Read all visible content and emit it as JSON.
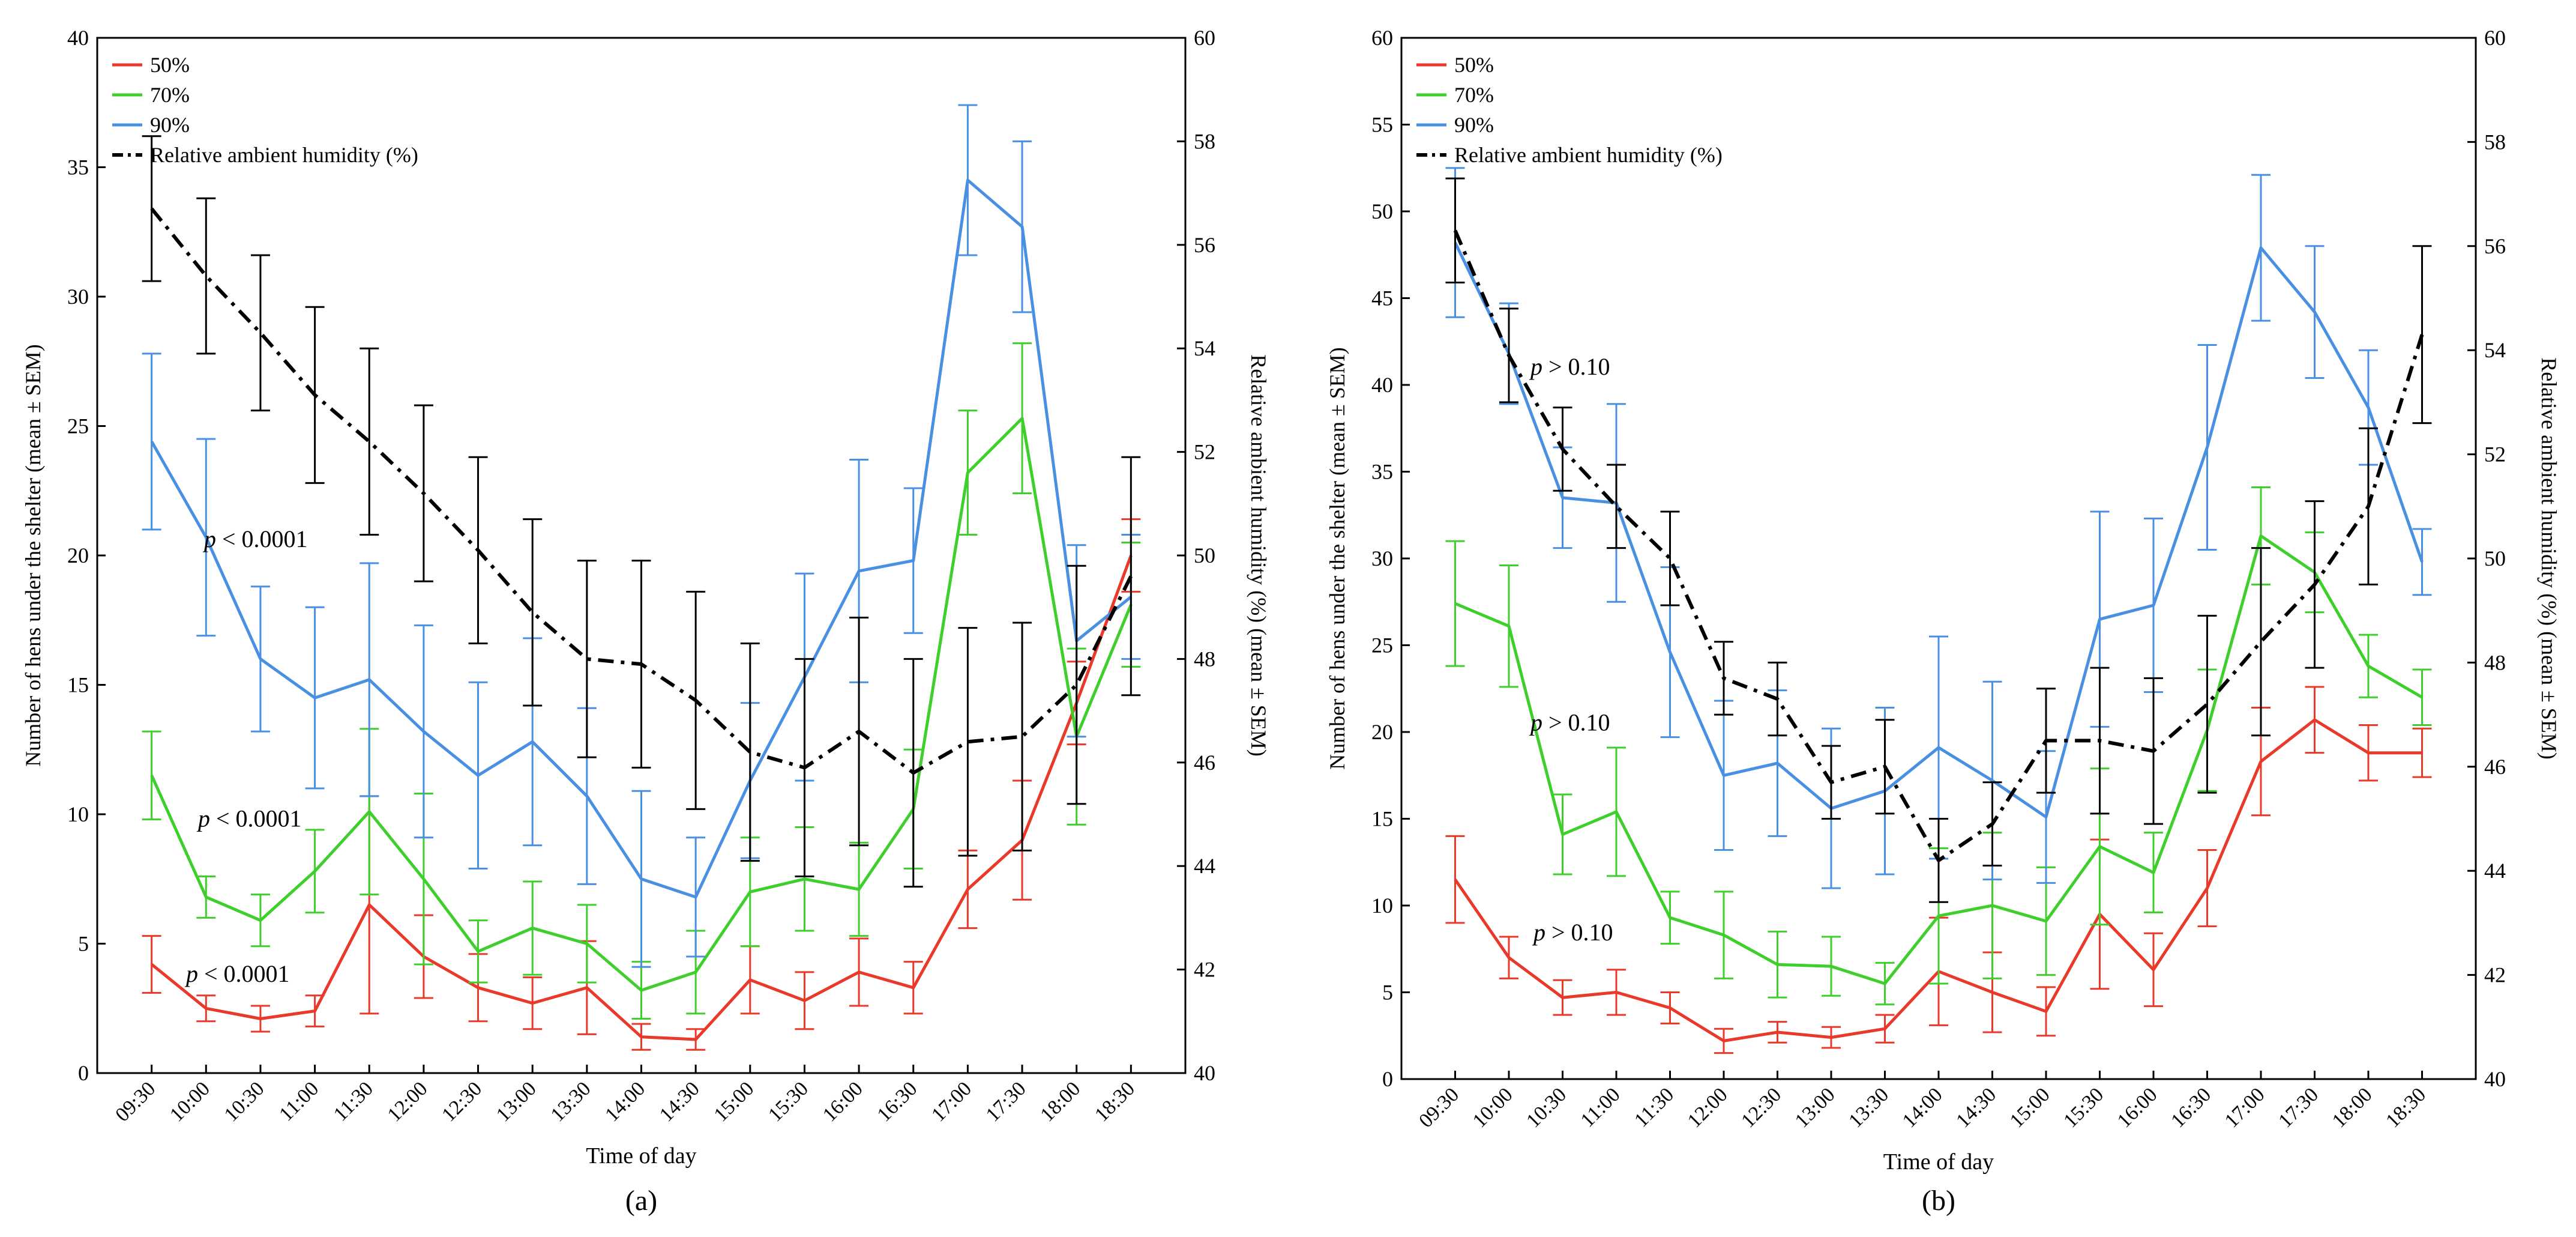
{
  "colors": {
    "red": "#e8392a",
    "green": "#3fcf2c",
    "blue": "#4a90e2",
    "black": "#000000"
  },
  "time_labels": [
    "09:30",
    "10:00",
    "10:30",
    "11:00",
    "11:30",
    "12:00",
    "12:30",
    "13:00",
    "13:30",
    "14:00",
    "14:30",
    "15:00",
    "15:30",
    "16:00",
    "16:30",
    "17:00",
    "17:30",
    "18:00",
    "18:30"
  ],
  "chart_data": [
    {
      "type": "line",
      "panel_label": "(a)",
      "xlabel": "Time of day",
      "ylabel_left": "Number of hens under the shelter (mean ± SEM)",
      "ylabel_right": "Relative ambient humidity (%) (mean ± SEM)",
      "ylim_left": [
        0,
        40
      ],
      "yticks_left": [
        0,
        5,
        10,
        15,
        20,
        25,
        30,
        35,
        40
      ],
      "ylim_right": [
        40,
        60
      ],
      "yticks_right": [
        40,
        42,
        44,
        46,
        48,
        50,
        52,
        54,
        56,
        58,
        60
      ],
      "legend_position": "top-left",
      "series": [
        {
          "name": "50%",
          "color_key": "red",
          "axis": "left",
          "values": [
            4.2,
            2.5,
            2.1,
            2.4,
            6.5,
            4.5,
            3.3,
            2.7,
            3.3,
            1.4,
            1.3,
            3.6,
            2.8,
            3.9,
            3.3,
            7.1,
            9.0,
            14.3,
            20.0
          ],
          "errors": [
            1.1,
            0.5,
            0.5,
            0.6,
            4.2,
            1.6,
            1.3,
            1.0,
            1.8,
            0.5,
            0.4,
            1.3,
            1.1,
            1.3,
            1.0,
            1.5,
            2.3,
            1.6,
            1.4
          ]
        },
        {
          "name": "70%",
          "color_key": "green",
          "axis": "left",
          "values": [
            11.5,
            6.8,
            5.9,
            7.8,
            10.1,
            7.5,
            4.7,
            5.6,
            5.0,
            3.2,
            3.9,
            7.0,
            7.5,
            7.1,
            10.2,
            23.2,
            25.3,
            13.0,
            18.1
          ],
          "errors": [
            1.7,
            0.8,
            1.0,
            1.6,
            3.2,
            3.3,
            1.2,
            1.8,
            1.5,
            1.1,
            1.6,
            2.1,
            2.0,
            1.8,
            2.3,
            2.4,
            2.9,
            3.4,
            2.4
          ]
        },
        {
          "name": "90%",
          "color_key": "blue",
          "axis": "left",
          "values": [
            24.4,
            20.7,
            16.0,
            14.5,
            15.2,
            13.2,
            11.5,
            12.8,
            10.7,
            7.5,
            6.8,
            11.3,
            15.3,
            19.4,
            19.8,
            34.5,
            32.7,
            16.7,
            18.4
          ],
          "errors": [
            3.4,
            3.8,
            2.8,
            3.5,
            4.5,
            4.1,
            3.6,
            4.0,
            3.4,
            3.4,
            2.3,
            3.0,
            4.0,
            4.3,
            2.8,
            2.9,
            3.3,
            3.7,
            2.4
          ]
        },
        {
          "name": "Relative ambient humidity (%)",
          "color_key": "black",
          "axis": "right",
          "dash": "dash-dot",
          "values": [
            56.7,
            55.4,
            54.3,
            53.1,
            52.2,
            51.2,
            50.1,
            48.9,
            48.0,
            47.9,
            47.2,
            46.2,
            45.9,
            46.6,
            45.8,
            46.4,
            46.5,
            47.5,
            49.6
          ],
          "errors": [
            1.4,
            1.5,
            1.5,
            1.7,
            1.8,
            1.7,
            1.8,
            1.8,
            1.9,
            2.0,
            2.1,
            2.1,
            2.1,
            2.2,
            2.2,
            2.2,
            2.2,
            2.3,
            2.3
          ]
        }
      ],
      "annotations": [
        {
          "text": "p < 0.0001",
          "near": "90%",
          "at_index": 2.2,
          "value": 20.6
        },
        {
          "text": "p < 0.0001",
          "near": "70%",
          "at_index": 2.0,
          "value": 9.8
        },
        {
          "text": "p < 0.0001",
          "near": "50%",
          "at_index": 1.8,
          "value": 3.8
        }
      ]
    },
    {
      "type": "line",
      "panel_label": "(b)",
      "xlabel": "Time of day",
      "ylabel_left": "Number of hens under the shelter (mean ± SEM)",
      "ylabel_right": "Relative ambient humidity (%) (mean ± SEM)",
      "ylim_left": [
        0,
        60
      ],
      "yticks_left": [
        0,
        5,
        10,
        15,
        20,
        25,
        30,
        35,
        40,
        45,
        50,
        55,
        60
      ],
      "ylim_right": [
        40,
        60
      ],
      "yticks_right": [
        40,
        42,
        44,
        46,
        48,
        50,
        52,
        54,
        56,
        58,
        60
      ],
      "legend_position": "top-left",
      "series": [
        {
          "name": "50%",
          "color_key": "red",
          "axis": "left",
          "values": [
            11.5,
            7.0,
            4.7,
            5.0,
            4.1,
            2.2,
            2.7,
            2.4,
            2.9,
            6.2,
            5.0,
            3.9,
            9.5,
            6.3,
            11.0,
            18.3,
            20.7,
            18.8,
            18.8
          ],
          "errors": [
            2.5,
            1.2,
            1.0,
            1.3,
            0.9,
            0.7,
            0.6,
            0.6,
            0.8,
            3.1,
            2.3,
            1.4,
            4.3,
            2.1,
            2.2,
            3.1,
            1.9,
            1.6,
            1.4
          ]
        },
        {
          "name": "70%",
          "color_key": "green",
          "axis": "left",
          "values": [
            27.4,
            26.1,
            14.1,
            15.4,
            9.3,
            8.3,
            6.6,
            6.5,
            5.5,
            9.4,
            10.0,
            9.1,
            13.4,
            11.9,
            20.1,
            31.3,
            29.2,
            23.8,
            22.0
          ],
          "errors": [
            3.6,
            3.5,
            2.3,
            3.7,
            1.5,
            2.5,
            1.9,
            1.7,
            1.2,
            3.9,
            4.2,
            3.1,
            4.5,
            2.3,
            3.5,
            2.8,
            2.3,
            1.8,
            1.6
          ]
        },
        {
          "name": "90%",
          "color_key": "blue",
          "axis": "left",
          "values": [
            48.2,
            41.8,
            33.5,
            33.2,
            24.6,
            17.5,
            18.2,
            15.6,
            16.6,
            19.1,
            17.2,
            15.1,
            26.5,
            27.3,
            36.4,
            47.9,
            44.2,
            38.7,
            29.8
          ],
          "errors": [
            4.3,
            2.9,
            2.9,
            5.7,
            4.9,
            4.3,
            4.2,
            4.6,
            4.8,
            6.4,
            5.7,
            3.8,
            6.2,
            5.0,
            5.9,
            4.2,
            3.8,
            3.3,
            1.9
          ]
        },
        {
          "name": "Relative ambient humidity (%)",
          "color_key": "black",
          "axis": "right",
          "dash": "dash-dot",
          "values": [
            56.3,
            53.9,
            52.1,
            51.0,
            50.0,
            47.7,
            47.3,
            45.7,
            46.0,
            44.2,
            44.9,
            46.5,
            46.5,
            46.3,
            47.2,
            48.4,
            49.5,
            51.0,
            54.3
          ],
          "errors": [
            1.0,
            0.9,
            0.8,
            0.8,
            0.9,
            0.7,
            0.7,
            0.7,
            0.9,
            0.8,
            0.8,
            1.0,
            1.4,
            1.4,
            1.7,
            1.8,
            1.6,
            1.5,
            1.7
          ]
        }
      ],
      "annotations": [
        {
          "text": "p > 0.10",
          "near": "90%",
          "at_index": 2.2,
          "value": 41.0
        },
        {
          "text": "p > 0.10",
          "near": "70%",
          "at_index": 2.2,
          "value": 20.5
        },
        {
          "text": "p > 0.10",
          "near": "50%",
          "at_index": 2.2,
          "value": 8.4
        }
      ]
    }
  ]
}
